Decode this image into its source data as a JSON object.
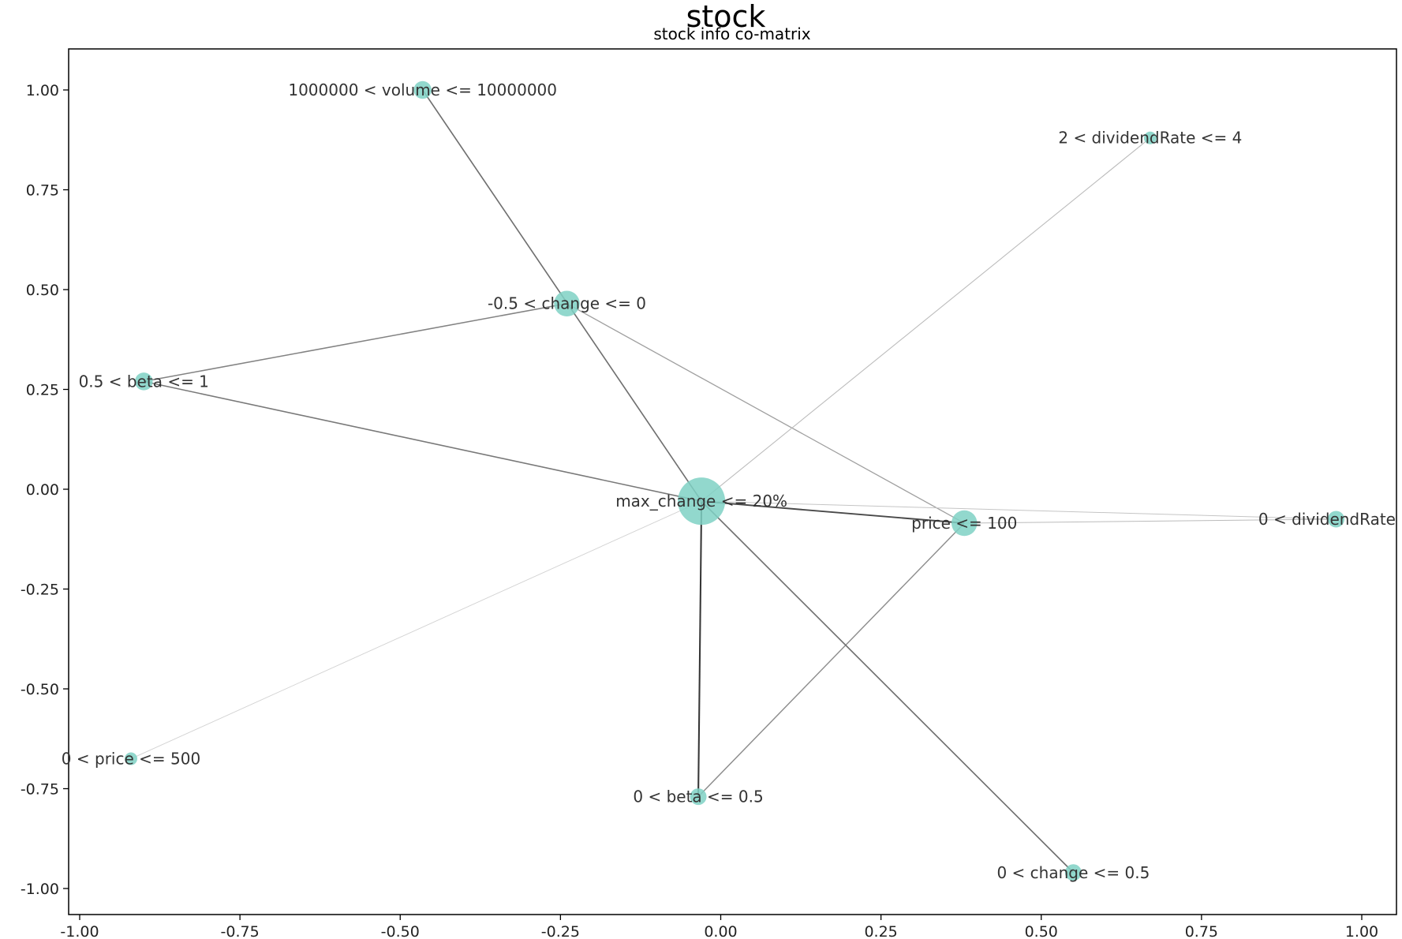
{
  "title": "stock",
  "subtitle": "stock info co-matrix",
  "chart_data": {
    "type": "network",
    "xlim": [
      -1.03,
      1.05
    ],
    "ylim": [
      -1.06,
      1.1
    ],
    "x_ticks": [
      -1.0,
      -0.75,
      -0.5,
      -0.25,
      0.0,
      0.25,
      0.5,
      0.75,
      1.0
    ],
    "x_tick_labels": [
      "-1.00",
      "-0.75",
      "-0.50",
      "-0.25",
      "0.00",
      "0.25",
      "0.50",
      "0.75",
      "1.00"
    ],
    "y_ticks": [
      1.0,
      0.75,
      0.5,
      0.25,
      0.0,
      -0.25,
      -0.5,
      -0.75,
      -1.0
    ],
    "y_tick_labels": [
      "1.00",
      "0.75",
      "0.50",
      "0.25",
      "0.00",
      "-0.25",
      "-0.50",
      "-0.75",
      "-1.00"
    ],
    "node_color": "#7fd1c4",
    "nodes": [
      {
        "id": "max_change",
        "label": "max_change <= 20%",
        "x": -0.03,
        "y": -0.03,
        "size": 1.0
      },
      {
        "id": "price100",
        "label": "price <= 100",
        "x": 0.38,
        "y": -0.085,
        "size": 0.45
      },
      {
        "id": "change_neg",
        "label": "-0.5 < change <= 0",
        "x": -0.24,
        "y": 0.465,
        "size": 0.45
      },
      {
        "id": "volume",
        "label": "1000000 < volume <= 10000000",
        "x": -0.465,
        "y": 1.0,
        "size": 0.25
      },
      {
        "id": "beta_high",
        "label": "0.5 < beta <= 1",
        "x": -0.9,
        "y": 0.27,
        "size": 0.25
      },
      {
        "id": "dividend_high",
        "label": "2 < dividendRate <= 4",
        "x": 0.67,
        "y": 0.88,
        "size": 0.12
      },
      {
        "id": "dividend_low",
        "label": "0 < dividendRate <",
        "x": 0.96,
        "y": -0.075,
        "size": 0.22
      },
      {
        "id": "price500",
        "label": "0 < price <= 500",
        "x": -0.92,
        "y": -0.675,
        "size": 0.12
      },
      {
        "id": "beta_low",
        "label": "0 < beta <= 0.5",
        "x": -0.035,
        "y": -0.77,
        "size": 0.22
      },
      {
        "id": "change_pos",
        "label": "0 < change <= 0.5",
        "x": 0.55,
        "y": -0.96,
        "size": 0.22
      }
    ],
    "edges": [
      {
        "source": "volume",
        "target": "max_change",
        "weight": 0.6
      },
      {
        "source": "change_neg",
        "target": "beta_high",
        "weight": 0.5
      },
      {
        "source": "change_neg",
        "target": "price100",
        "weight": 0.35
      },
      {
        "source": "beta_high",
        "target": "max_change",
        "weight": 0.55
      },
      {
        "source": "max_change",
        "target": "price100",
        "weight": 0.8
      },
      {
        "source": "max_change",
        "target": "dividend_high",
        "weight": 0.2
      },
      {
        "source": "max_change",
        "target": "dividend_low",
        "weight": 0.15
      },
      {
        "source": "price100",
        "target": "dividend_low",
        "weight": 0.2
      },
      {
        "source": "max_change",
        "target": "beta_low",
        "weight": 0.9
      },
      {
        "source": "price100",
        "target": "beta_low",
        "weight": 0.45
      },
      {
        "source": "max_change",
        "target": "change_pos",
        "weight": 0.6
      },
      {
        "source": "max_change",
        "target": "price500",
        "weight": 0.08
      }
    ]
  }
}
